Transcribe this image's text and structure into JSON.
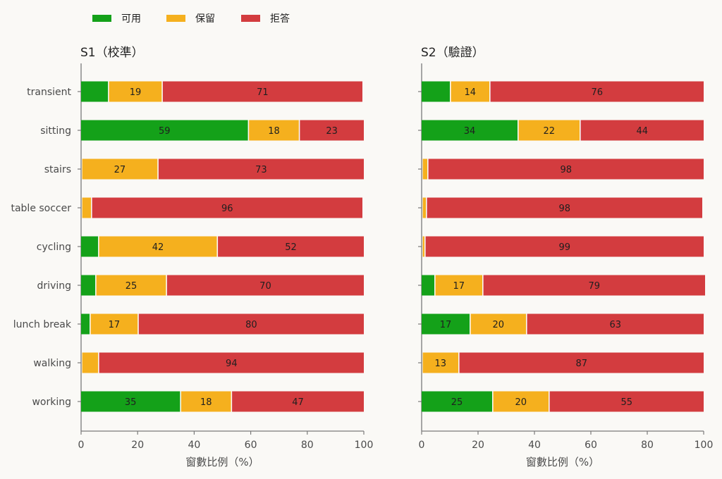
{
  "legend": [
    {
      "name": "可用",
      "color": "#14a119"
    },
    {
      "name": "保留",
      "color": "#f5b01e"
    },
    {
      "name": "拒答",
      "color": "#d33c3f"
    }
  ],
  "chart_data": [
    {
      "type": "bar",
      "orientation": "horizontal",
      "stacked": true,
      "title": "S1（校準）",
      "xlabel": "窗數比例（%）",
      "xlim": [
        0,
        100
      ],
      "xticks": [
        0,
        20,
        40,
        60,
        80,
        100
      ],
      "categories": [
        "transient",
        "sitting",
        "stairs",
        "table soccer",
        "cycling",
        "driving",
        "lunch break",
        "walking",
        "working"
      ],
      "series": [
        {
          "name": "可用",
          "color": "#14a119",
          "values": [
            9.5,
            59,
            0,
            0,
            6,
            5,
            3,
            0,
            35
          ]
        },
        {
          "name": "保留",
          "color": "#f5b01e",
          "values": [
            19,
            18,
            27,
            3.5,
            42,
            25,
            17,
            6,
            18
          ]
        },
        {
          "name": "拒答",
          "color": "#d33c3f",
          "values": [
            71,
            23,
            73,
            96,
            52,
            70,
            80,
            94,
            47
          ]
        }
      ],
      "data_labels": [
        [
          null,
          59,
          null,
          null,
          null,
          null,
          null,
          null,
          35
        ],
        [
          19,
          18,
          27,
          null,
          42,
          25,
          17,
          null,
          18
        ],
        [
          71,
          23,
          73,
          96,
          52,
          70,
          80,
          94,
          47
        ]
      ],
      "grid": false,
      "legend_position": "top-left"
    },
    {
      "type": "bar",
      "orientation": "horizontal",
      "stacked": true,
      "title": "S2（驗證）",
      "xlabel": "窗數比例（%）",
      "xlim": [
        0,
        100
      ],
      "xticks": [
        0,
        20,
        40,
        60,
        80,
        100
      ],
      "categories": [
        "transient",
        "sitting",
        "stairs",
        "table soccer",
        "cycling",
        "driving",
        "lunch break",
        "walking",
        "working"
      ],
      "series": [
        {
          "name": "可用",
          "color": "#14a119",
          "values": [
            10,
            34,
            0,
            0,
            0,
            4.5,
            17,
            0,
            25
          ]
        },
        {
          "name": "保留",
          "color": "#f5b01e",
          "values": [
            14,
            22,
            2,
            1.5,
            1,
            17,
            20,
            13,
            20
          ]
        },
        {
          "name": "拒答",
          "color": "#d33c3f",
          "values": [
            76,
            44,
            98,
            98,
            99,
            79,
            63,
            87,
            55
          ]
        }
      ],
      "data_labels": [
        [
          null,
          34,
          null,
          null,
          null,
          null,
          17,
          null,
          25
        ],
        [
          14,
          22,
          null,
          null,
          null,
          17,
          20,
          13,
          20
        ],
        [
          76,
          44,
          98,
          98,
          99,
          79,
          63,
          87,
          55
        ]
      ],
      "grid": false,
      "legend_position": "top-left"
    }
  ]
}
